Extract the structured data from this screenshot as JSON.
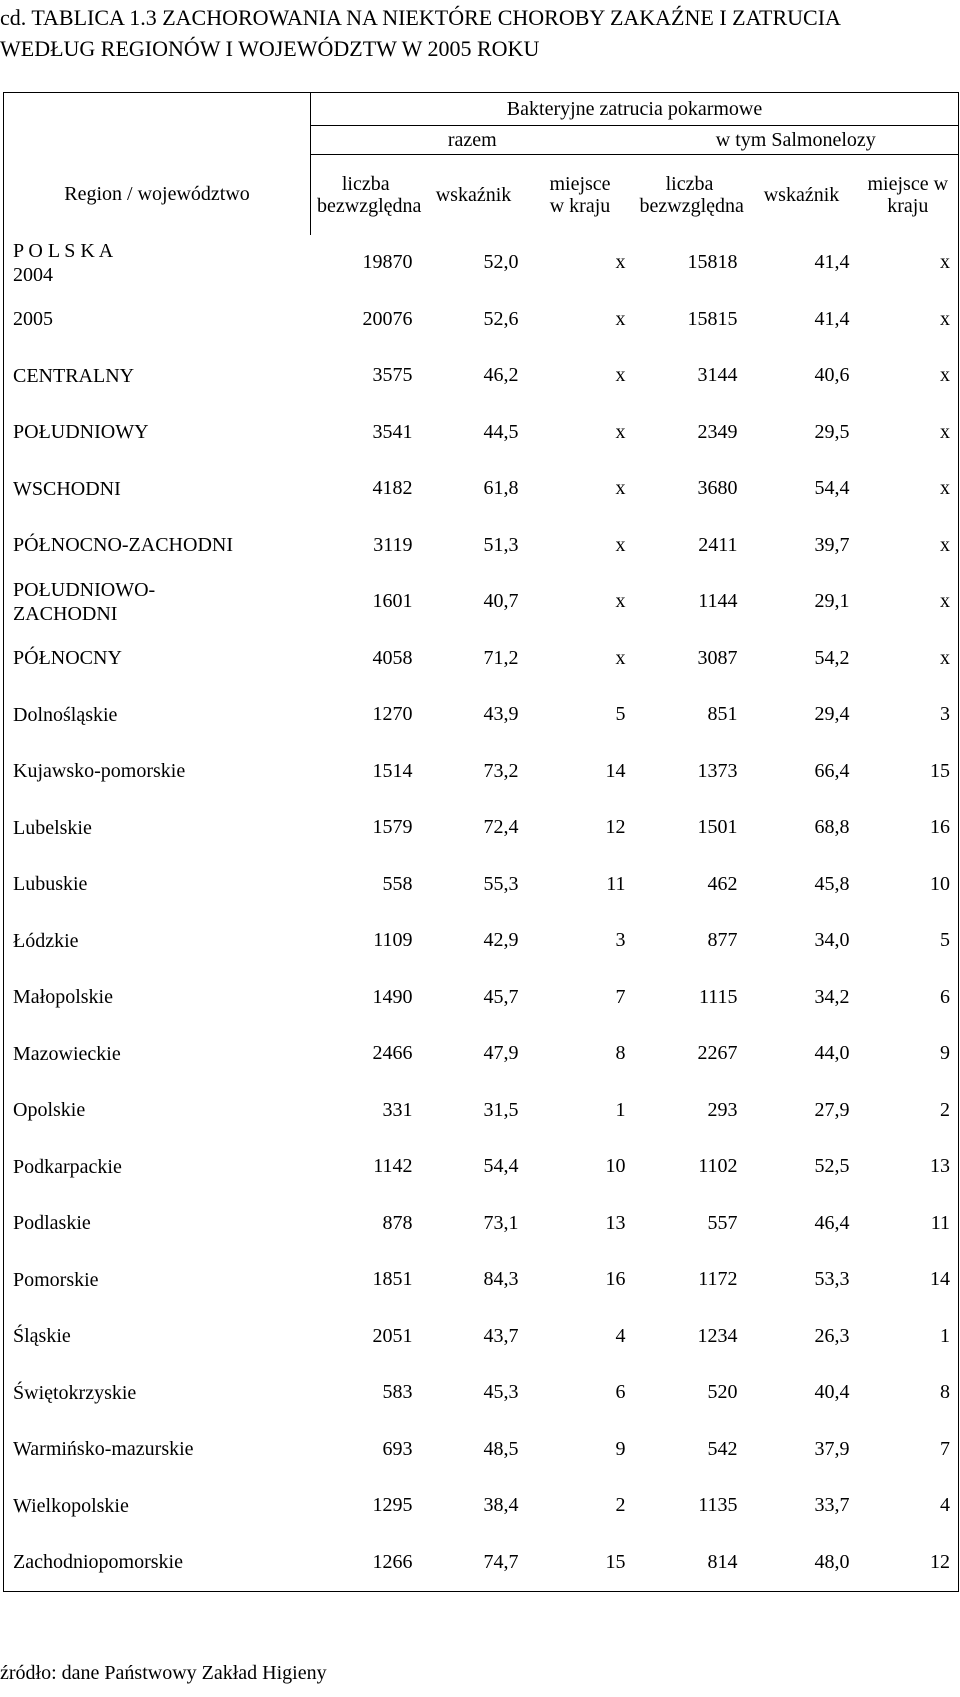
{
  "title": {
    "line1": "cd. TABLICA 1.3    ZACHOROWANIA NA NIEKTÓRE CHOROBY ZAKAŹNE I ZATRUCIA",
    "line2": "WEDŁUG REGIONÓW I WOJEWÓDZTW W 2005 ROKU"
  },
  "header": {
    "region": "Region / województwo",
    "group": "Bakteryjne zatrucia pokarmowe",
    "razem": "razem",
    "salmonelozy": "w tym  Salmonelozy",
    "liczba": "liczba bezwzględna",
    "wskaznik": "wskaźnik",
    "miejsce": "miejsce w kraju"
  },
  "rows": [
    {
      "label": "P O L S K A\n2004",
      "liczba": "19870",
      "wskaznik": "52,0",
      "miejsce": "x",
      "s_liczba": "15818",
      "s_wskaznik": "41,4",
      "s_miejsce": "x"
    },
    {
      "label": "2005",
      "liczba": "20076",
      "wskaznik": "52,6",
      "miejsce": "x",
      "s_liczba": "15815",
      "s_wskaznik": "41,4",
      "s_miejsce": "x"
    },
    {
      "label": "CENTRALNY",
      "liczba": "3575",
      "wskaznik": "46,2",
      "miejsce": "x",
      "s_liczba": "3144",
      "s_wskaznik": "40,6",
      "s_miejsce": "x"
    },
    {
      "label": "POŁUDNIOWY",
      "liczba": "3541",
      "wskaznik": "44,5",
      "miejsce": "x",
      "s_liczba": "2349",
      "s_wskaznik": "29,5",
      "s_miejsce": "x"
    },
    {
      "label": "WSCHODNI",
      "liczba": "4182",
      "wskaznik": "61,8",
      "miejsce": "x",
      "s_liczba": "3680",
      "s_wskaznik": "54,4",
      "s_miejsce": "x"
    },
    {
      "label": "PÓŁNOCNO-ZACHODNI",
      "liczba": "3119",
      "wskaznik": "51,3",
      "miejsce": "x",
      "s_liczba": "2411",
      "s_wskaznik": "39,7",
      "s_miejsce": "x"
    },
    {
      "label": "POŁUDNIOWO-\nZACHODNI",
      "liczba": "1601",
      "wskaznik": "40,7",
      "miejsce": "x",
      "s_liczba": "1144",
      "s_wskaznik": "29,1",
      "s_miejsce": "x"
    },
    {
      "label": "PÓŁNOCNY",
      "liczba": "4058",
      "wskaznik": "71,2",
      "miejsce": "x",
      "s_liczba": "3087",
      "s_wskaznik": "54,2",
      "s_miejsce": "x"
    },
    {
      "label": "Dolnośląskie",
      "liczba": "1270",
      "wskaznik": "43,9",
      "miejsce": "5",
      "s_liczba": "851",
      "s_wskaznik": "29,4",
      "s_miejsce": "3"
    },
    {
      "label": "Kujawsko-pomorskie",
      "liczba": "1514",
      "wskaznik": "73,2",
      "miejsce": "14",
      "s_liczba": "1373",
      "s_wskaznik": "66,4",
      "s_miejsce": "15"
    },
    {
      "label": "Lubelskie",
      "liczba": "1579",
      "wskaznik": "72,4",
      "miejsce": "12",
      "s_liczba": "1501",
      "s_wskaznik": "68,8",
      "s_miejsce": "16"
    },
    {
      "label": "Lubuskie",
      "liczba": "558",
      "wskaznik": "55,3",
      "miejsce": "11",
      "s_liczba": "462",
      "s_wskaznik": "45,8",
      "s_miejsce": "10"
    },
    {
      "label": "Łódzkie",
      "liczba": "1109",
      "wskaznik": "42,9",
      "miejsce": "3",
      "s_liczba": "877",
      "s_wskaznik": "34,0",
      "s_miejsce": "5"
    },
    {
      "label": "Małopolskie",
      "liczba": "1490",
      "wskaznik": "45,7",
      "miejsce": "7",
      "s_liczba": "1115",
      "s_wskaznik": "34,2",
      "s_miejsce": "6"
    },
    {
      "label": "Mazowieckie",
      "liczba": "2466",
      "wskaznik": "47,9",
      "miejsce": "8",
      "s_liczba": "2267",
      "s_wskaznik": "44,0",
      "s_miejsce": "9"
    },
    {
      "label": "Opolskie",
      "liczba": "331",
      "wskaznik": "31,5",
      "miejsce": "1",
      "s_liczba": "293",
      "s_wskaznik": "27,9",
      "s_miejsce": "2"
    },
    {
      "label": "Podkarpackie",
      "liczba": "1142",
      "wskaznik": "54,4",
      "miejsce": "10",
      "s_liczba": "1102",
      "s_wskaznik": "52,5",
      "s_miejsce": "13"
    },
    {
      "label": "Podlaskie",
      "liczba": "878",
      "wskaznik": "73,1",
      "miejsce": "13",
      "s_liczba": "557",
      "s_wskaznik": "46,4",
      "s_miejsce": "11"
    },
    {
      "label": "Pomorskie",
      "liczba": "1851",
      "wskaznik": "84,3",
      "miejsce": "16",
      "s_liczba": "1172",
      "s_wskaznik": "53,3",
      "s_miejsce": "14"
    },
    {
      "label": "Śląskie",
      "liczba": "2051",
      "wskaznik": "43,7",
      "miejsce": "4",
      "s_liczba": "1234",
      "s_wskaznik": "26,3",
      "s_miejsce": "1"
    },
    {
      "label": "Świętokrzyskie",
      "liczba": "583",
      "wskaznik": "45,3",
      "miejsce": "6",
      "s_liczba": "520",
      "s_wskaznik": "40,4",
      "s_miejsce": "8"
    },
    {
      "label": "Warmińsko-mazurskie",
      "liczba": "693",
      "wskaznik": "48,5",
      "miejsce": "9",
      "s_liczba": "542",
      "s_wskaznik": "37,9",
      "s_miejsce": "7"
    },
    {
      "label": "Wielkopolskie",
      "liczba": "1295",
      "wskaznik": "38,4",
      "miejsce": "2",
      "s_liczba": "1135",
      "s_wskaznik": "33,7",
      "s_miejsce": "4"
    },
    {
      "label": "Zachodniopomorskie",
      "liczba": "1266",
      "wskaznik": "74,7",
      "miejsce": "15",
      "s_liczba": "814",
      "s_wskaznik": "48,0",
      "s_miejsce": "12"
    }
  ],
  "footer": "źródło: dane Państwowy Zakład Higieny"
}
